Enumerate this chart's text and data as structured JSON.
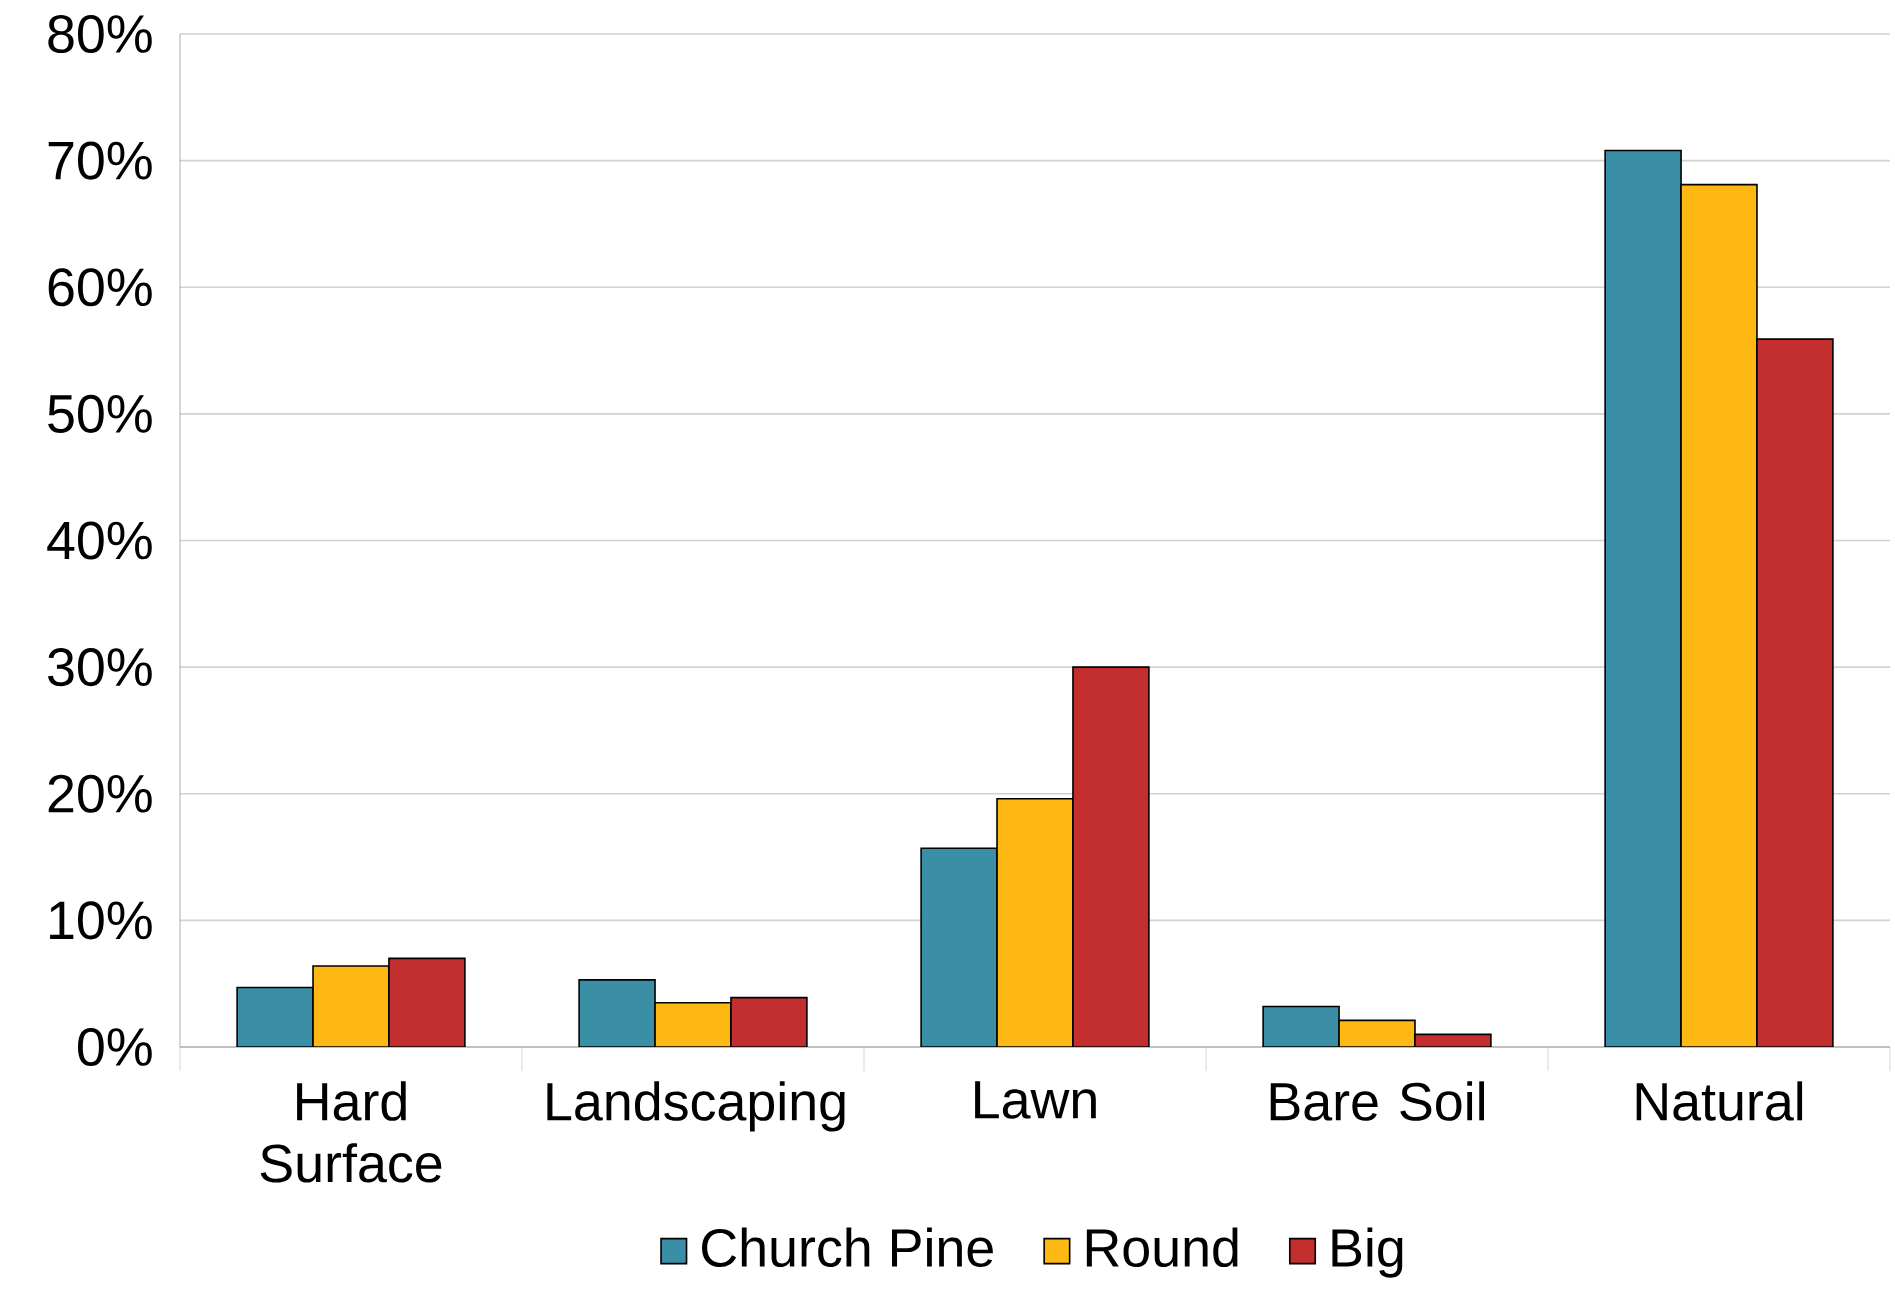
{
  "chart_data": {
    "type": "bar",
    "categories": [
      "Hard Surface",
      "Landscaping",
      "Lawn",
      "Bare Soil",
      "Natural"
    ],
    "series": [
      {
        "name": "Church Pine",
        "color": "#3a8fa6",
        "values": [
          4.7,
          5.3,
          15.7,
          3.2,
          70.8
        ]
      },
      {
        "name": "Round",
        "color": "#fdb813",
        "values": [
          6.4,
          3.5,
          19.6,
          2.1,
          68.1
        ]
      },
      {
        "name": "Big",
        "color": "#c32e2f",
        "values": [
          7.0,
          3.9,
          30.0,
          1.0,
          55.9
        ]
      }
    ],
    "ylim": [
      0,
      80
    ],
    "yticks": [
      {
        "value": 0,
        "label": "0%"
      },
      {
        "value": 10,
        "label": "10%"
      },
      {
        "value": 20,
        "label": "20%"
      },
      {
        "value": 30,
        "label": "30%"
      },
      {
        "value": 40,
        "label": "40%"
      },
      {
        "value": 50,
        "label": "50%"
      },
      {
        "value": 60,
        "label": "60%"
      },
      {
        "value": 70,
        "label": "70%"
      },
      {
        "value": 80,
        "label": "80%"
      }
    ],
    "grid": "y",
    "legend": "bottom"
  }
}
